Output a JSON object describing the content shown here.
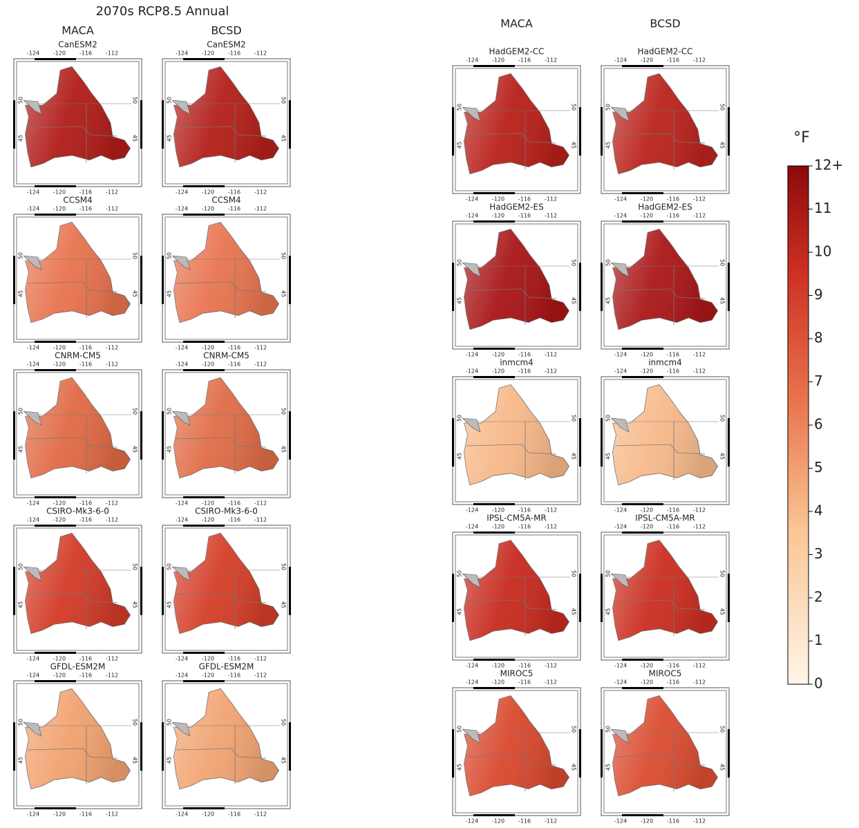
{
  "title": "2070s RCP8.5 Annual",
  "groups": [
    {
      "headers": [
        "MACA",
        "BCSD"
      ],
      "rows": [
        {
          "model": "CanESM2",
          "colors": [
            "#b01c18",
            "#b3201a"
          ]
        },
        {
          "model": "CCSM4",
          "colors": [
            "#e8734e",
            "#e87550"
          ]
        },
        {
          "model": "CNRM-CM5",
          "colors": [
            "#e06a45",
            "#e06c47"
          ]
        },
        {
          "model": "CSIRO-Mk3-6-0",
          "colors": [
            "#d23a26",
            "#d43e28"
          ]
        },
        {
          "model": "GFDL-ESM2M",
          "colors": [
            "#f2a270",
            "#f2a472"
          ]
        }
      ]
    },
    {
      "headers": [
        "MACA",
        "BCSD"
      ],
      "rows": [
        {
          "model": "HadGEM2-CC",
          "colors": [
            "#b8201a",
            "#ba231c"
          ]
        },
        {
          "model": "HadGEM2-ES",
          "colors": [
            "#a81515",
            "#aa1717"
          ]
        },
        {
          "model": "inmcm4",
          "colors": [
            "#f7b888",
            "#f7ba8a"
          ]
        },
        {
          "model": "IPSL-CM5A-MR",
          "colors": [
            "#c82a1e",
            "#cb2e20"
          ]
        },
        {
          "model": "MIROC5",
          "colors": [
            "#d9482e",
            "#da4c30"
          ]
        }
      ]
    }
  ],
  "lon_ticks": [
    -124,
    -120,
    -116,
    -112
  ],
  "lat_ticks": [
    50,
    45
  ],
  "colorbar": {
    "unit": "°F",
    "ticks": [
      0,
      1,
      2,
      3,
      4,
      5,
      6,
      7,
      8,
      9,
      10,
      11,
      {
        "value": 12,
        "label": "12+"
      }
    ],
    "range": [
      0,
      12
    ]
  }
}
